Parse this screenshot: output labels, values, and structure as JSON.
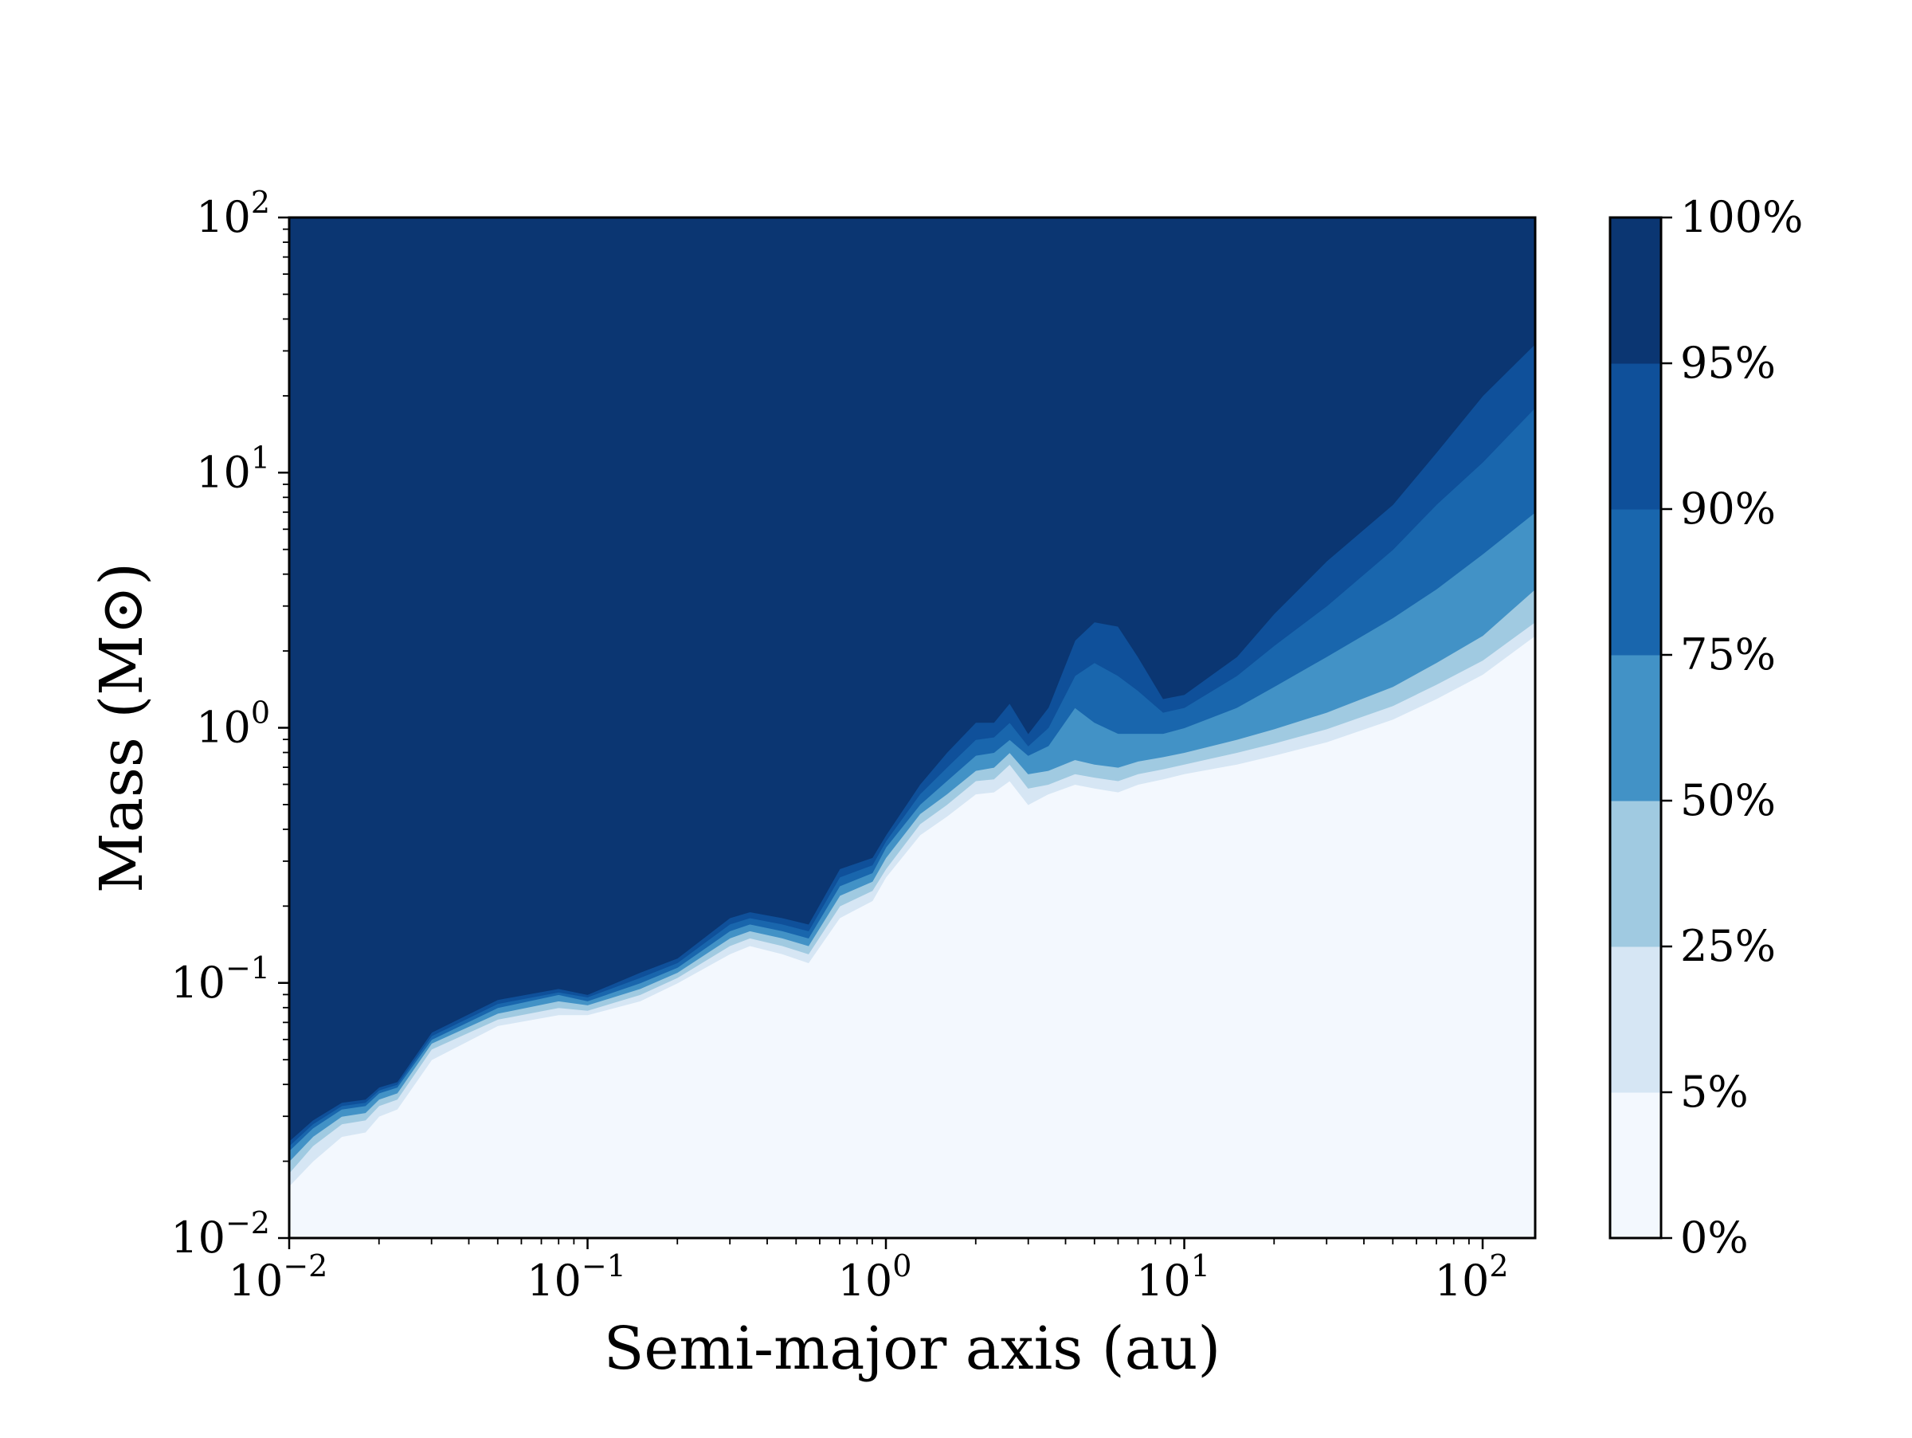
{
  "chart_data": {
    "type": "contour",
    "title": "",
    "xlabel": "Semi-major axis (au)",
    "ylabel": "Mass (M⊙)",
    "xscale": "log",
    "yscale": "log",
    "xlim": [
      0.01,
      150
    ],
    "ylim": [
      0.01,
      100
    ],
    "x_tick_labels": [
      {
        "value": 0.01,
        "base": "10",
        "exp": "−2"
      },
      {
        "value": 0.1,
        "base": "10",
        "exp": "−1"
      },
      {
        "value": 1,
        "base": "10",
        "exp": "0"
      },
      {
        "value": 10,
        "base": "10",
        "exp": "1"
      },
      {
        "value": 100,
        "base": "10",
        "exp": "2"
      }
    ],
    "y_tick_labels": [
      {
        "value": 0.01,
        "base": "10",
        "exp": "−2"
      },
      {
        "value": 0.1,
        "base": "10",
        "exp": "−1"
      },
      {
        "value": 1,
        "base": "10",
        "exp": "0"
      },
      {
        "value": 10,
        "base": "10",
        "exp": "1"
      },
      {
        "value": 100,
        "base": "10",
        "exp": "2"
      }
    ],
    "grid": false,
    "colorbar": {
      "placement": "right",
      "levels": [
        {
          "value": 0,
          "label": "0%"
        },
        {
          "value": 5,
          "label": "5%"
        },
        {
          "value": 25,
          "label": "25%"
        },
        {
          "value": 50,
          "label": "50%"
        },
        {
          "value": 75,
          "label": "75%"
        },
        {
          "value": 90,
          "label": "90%"
        },
        {
          "value": 95,
          "label": "95%"
        },
        {
          "value": 100,
          "label": "100%"
        }
      ],
      "colors": [
        "#f3f8fe",
        "#d6e6f4",
        "#a0cae1",
        "#4292c6",
        "#1966ad",
        "#0f509a",
        "#0b3672"
      ]
    },
    "contour_boundaries": {
      "x": [
        0.01,
        0.012,
        0.015,
        0.018,
        0.02,
        0.023,
        0.03,
        0.05,
        0.08,
        0.1,
        0.15,
        0.2,
        0.3,
        0.35,
        0.45,
        0.55,
        0.7,
        0.9,
        1.0,
        1.3,
        1.6,
        2.0,
        2.3,
        2.6,
        3.0,
        3.5,
        4.3,
        5.0,
        6.0,
        7.0,
        8.5,
        10,
        15,
        20,
        30,
        50,
        70,
        100,
        150
      ],
      "series": [
        {
          "level": "5%",
          "values": [
            0.016,
            0.02,
            0.025,
            0.026,
            0.03,
            0.032,
            0.05,
            0.068,
            0.075,
            0.075,
            0.085,
            0.1,
            0.13,
            0.14,
            0.13,
            0.12,
            0.18,
            0.21,
            0.26,
            0.38,
            0.45,
            0.55,
            0.56,
            0.62,
            0.5,
            0.55,
            0.6,
            0.58,
            0.56,
            0.6,
            0.63,
            0.66,
            0.72,
            0.78,
            0.88,
            1.08,
            1.3,
            1.62,
            2.3
          ]
        },
        {
          "level": "25%",
          "values": [
            0.018,
            0.023,
            0.028,
            0.029,
            0.033,
            0.035,
            0.055,
            0.072,
            0.08,
            0.078,
            0.09,
            0.105,
            0.14,
            0.15,
            0.14,
            0.13,
            0.2,
            0.23,
            0.28,
            0.42,
            0.5,
            0.62,
            0.63,
            0.72,
            0.58,
            0.6,
            0.66,
            0.64,
            0.62,
            0.66,
            0.69,
            0.72,
            0.8,
            0.87,
            0.99,
            1.22,
            1.48,
            1.84,
            2.6
          ]
        },
        {
          "level": "50%",
          "values": [
            0.02,
            0.025,
            0.03,
            0.031,
            0.035,
            0.037,
            0.058,
            0.076,
            0.085,
            0.082,
            0.095,
            0.11,
            0.15,
            0.16,
            0.15,
            0.14,
            0.22,
            0.25,
            0.31,
            0.46,
            0.55,
            0.68,
            0.7,
            0.8,
            0.66,
            0.68,
            0.75,
            0.72,
            0.7,
            0.74,
            0.77,
            0.8,
            0.9,
            0.99,
            1.15,
            1.45,
            1.8,
            2.3,
            3.5
          ]
        },
        {
          "level": "75%",
          "values": [
            0.022,
            0.027,
            0.032,
            0.033,
            0.037,
            0.039,
            0.06,
            0.08,
            0.09,
            0.085,
            0.1,
            0.115,
            0.16,
            0.17,
            0.16,
            0.15,
            0.24,
            0.27,
            0.34,
            0.5,
            0.62,
            0.78,
            0.8,
            0.9,
            0.78,
            0.85,
            1.2,
            1.05,
            0.95,
            0.95,
            0.95,
            1.0,
            1.2,
            1.45,
            1.9,
            2.7,
            3.5,
            4.8,
            7.0
          ]
        },
        {
          "level": "90%",
          "values": [
            0.023,
            0.028,
            0.033,
            0.034,
            0.038,
            0.04,
            0.062,
            0.083,
            0.092,
            0.088,
            0.105,
            0.12,
            0.17,
            0.18,
            0.17,
            0.16,
            0.26,
            0.29,
            0.36,
            0.55,
            0.7,
            0.9,
            0.92,
            1.05,
            0.85,
            1.0,
            1.6,
            1.8,
            1.6,
            1.4,
            1.15,
            1.2,
            1.6,
            2.1,
            3.0,
            5.0,
            7.5,
            11.0,
            18.0
          ]
        },
        {
          "level": "95%",
          "values": [
            0.024,
            0.029,
            0.034,
            0.035,
            0.039,
            0.041,
            0.064,
            0.086,
            0.095,
            0.09,
            0.11,
            0.125,
            0.18,
            0.19,
            0.18,
            0.17,
            0.28,
            0.31,
            0.38,
            0.6,
            0.8,
            1.05,
            1.05,
            1.25,
            0.95,
            1.2,
            2.2,
            2.6,
            2.5,
            1.9,
            1.3,
            1.35,
            1.9,
            2.8,
            4.5,
            7.5,
            12.0,
            20.0,
            32.0
          ]
        }
      ]
    }
  }
}
